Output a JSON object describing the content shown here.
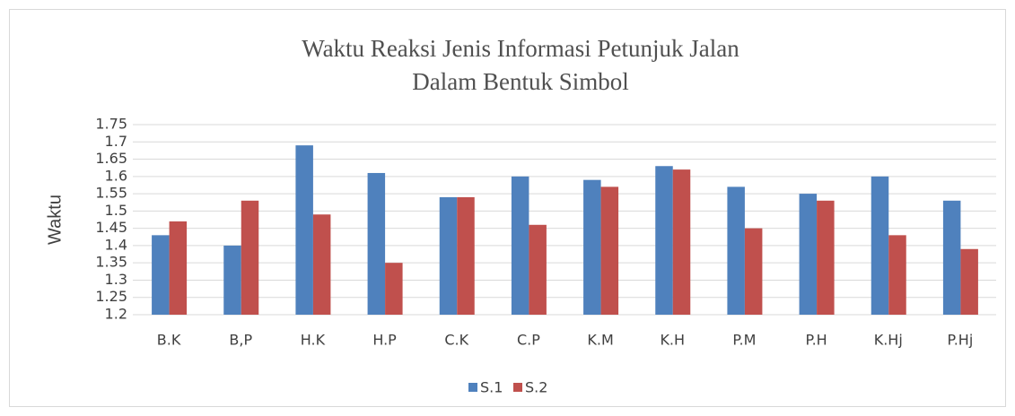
{
  "chart_data": {
    "type": "bar",
    "title": [
      "Waktu Reaksi Jenis Informasi Petunjuk Jalan",
      "Dalam Bentuk Simbol"
    ],
    "y_label": "Waktu",
    "categories": [
      "B.K",
      "B,P",
      "H.K",
      "H.P",
      "C.K",
      "C.P",
      "K.M",
      "K.H",
      "P.M",
      "P.H",
      "K.Hj",
      "P.Hj"
    ],
    "series": [
      {
        "name": "S.1",
        "color": "#4f81bd",
        "values": [
          1.43,
          1.4,
          1.69,
          1.61,
          1.54,
          1.6,
          1.59,
          1.63,
          1.57,
          1.55,
          1.6,
          1.53
        ]
      },
      {
        "name": "S.2",
        "color": "#c0504d",
        "values": [
          1.47,
          1.53,
          1.49,
          1.35,
          1.54,
          1.46,
          1.57,
          1.62,
          1.45,
          1.53,
          1.43,
          1.39
        ]
      }
    ],
    "ylim": [
      1.2,
      1.75
    ],
    "yticks": [
      1.2,
      1.25,
      1.3,
      1.35,
      1.4,
      1.45,
      1.5,
      1.55,
      1.6,
      1.65,
      1.7,
      1.75
    ],
    "grid": true,
    "legend": "bottom"
  }
}
